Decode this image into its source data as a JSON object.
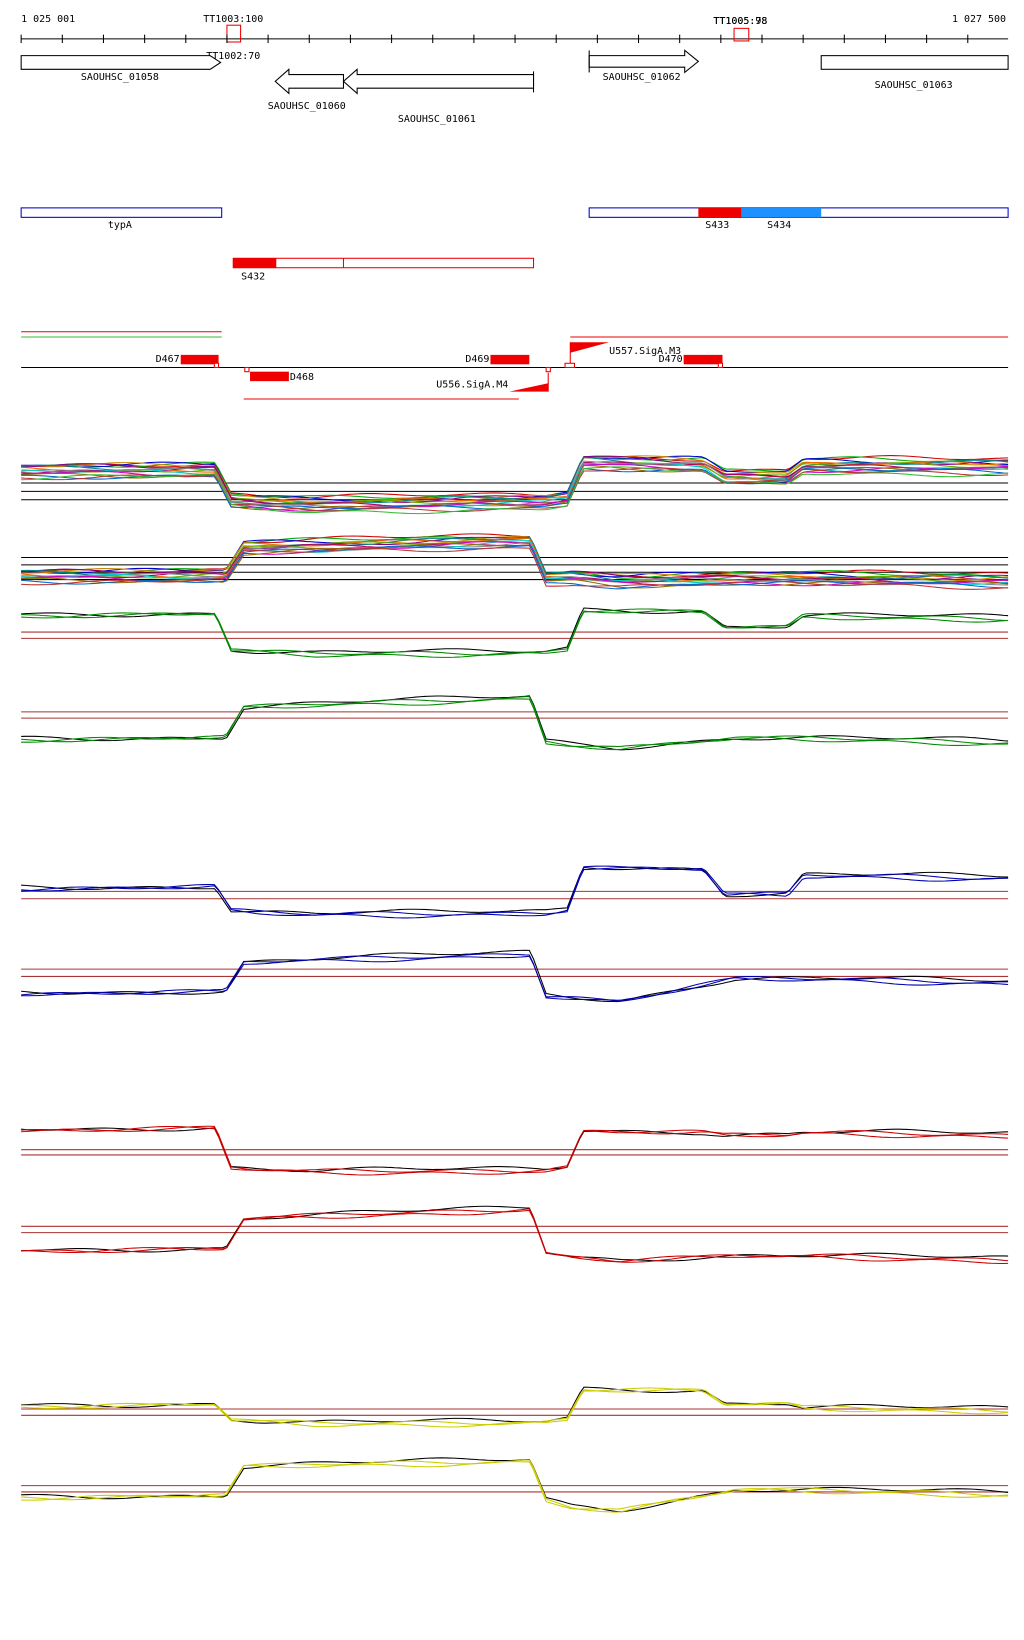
{
  "ruler": {
    "start": "1 025 001",
    "end": "1 027 500"
  },
  "terminators": [
    "TT1003:100",
    "TT1002:70",
    "TT1005:78",
    "TT1005:98"
  ],
  "genes": [
    "SAOUHSC_01058",
    "SAOUHSC_01060",
    "SAOUHSC_01061",
    "SAOUHSC_01062",
    "SAOUHSC_01063"
  ],
  "segments": [
    "typA",
    "S433",
    "S434",
    "S432"
  ],
  "features": [
    "D467",
    "D468",
    "D469",
    "D470",
    "U557.SigA.M3",
    "U556.SigA.M4"
  ]
}
